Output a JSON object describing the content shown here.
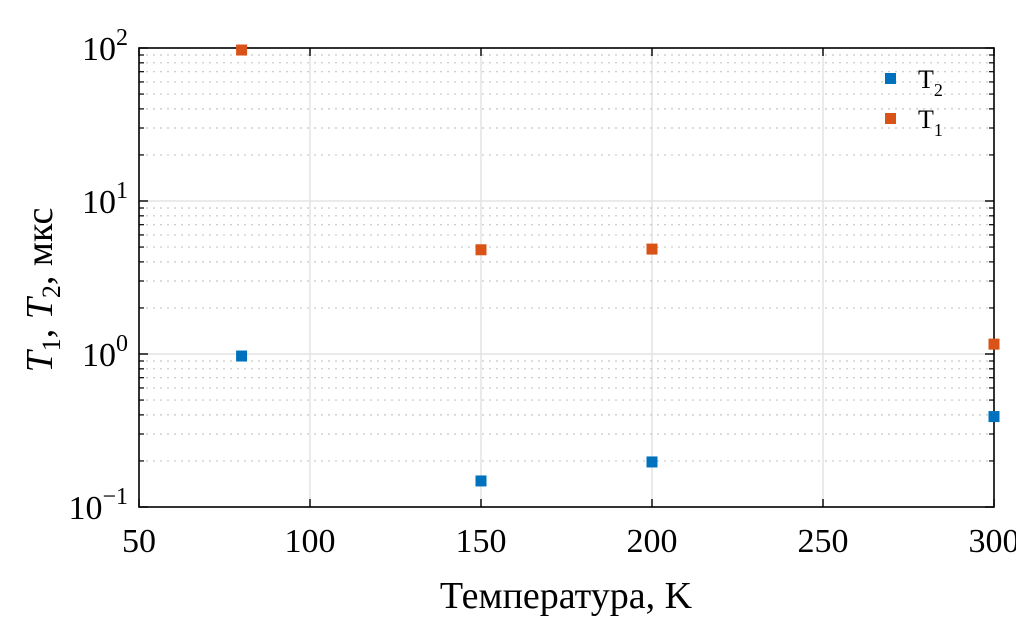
{
  "chart_data": {
    "type": "scatter",
    "title": "",
    "xlabel": "Температура, K",
    "ylabel": {
      "t1_symbol": "T",
      "t1_sub": "1",
      "t2_symbol": "T",
      "t2_sub": "2",
      "sep": ", ",
      "unit": ", мкс"
    },
    "xlim": [
      50,
      300
    ],
    "ylim": [
      0.1,
      100
    ],
    "yscale": "log",
    "x_ticks": [
      50,
      100,
      150,
      200,
      250,
      300
    ],
    "x_tick_labels": [
      "50",
      "100",
      "150",
      "200",
      "250",
      "300"
    ],
    "y_ticks": [
      {
        "value": 0.1,
        "base": "10",
        "exp": "−1"
      },
      {
        "value": 1,
        "base": "10",
        "exp": "0"
      },
      {
        "value": 10,
        "base": "10",
        "exp": "1"
      },
      {
        "value": 100,
        "base": "10",
        "exp": "2"
      }
    ],
    "grid": true,
    "legend_position": "top-right",
    "series": [
      {
        "name": "T",
        "name_sub": "2",
        "color": "#0072BD",
        "marker": "square",
        "x": [
          80,
          150,
          200,
          300
        ],
        "y": [
          0.97,
          0.148,
          0.197,
          0.39
        ]
      },
      {
        "name": "T",
        "name_sub": "1",
        "color": "#D95319",
        "marker": "square",
        "x": [
          80,
          150,
          200,
          300
        ],
        "y": [
          97,
          4.8,
          4.85,
          1.16
        ]
      }
    ]
  }
}
